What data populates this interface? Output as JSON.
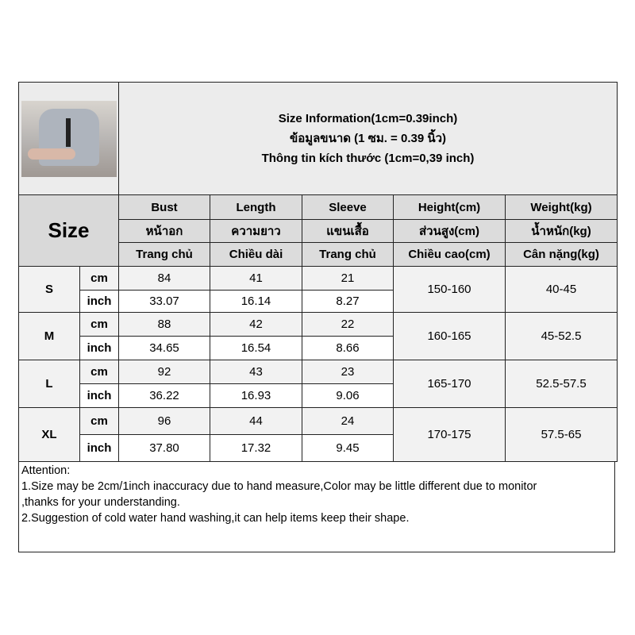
{
  "title_lines": [
    "Size Information(1cm=0.39inch)",
    "ข้อมูลขนาด (1 ซม. = 0.39 นิ้ว)",
    "Thông tin kích thước (1cm=0,39 inch)"
  ],
  "size_label": "Size",
  "headers": [
    [
      "Bust",
      "Length",
      "Sleeve",
      "Height(cm)",
      "Weight(kg)"
    ],
    [
      "หน้าอก",
      "ความยาว",
      "แขนเสื้อ",
      "ส่วนสูง(cm)",
      "น้ำหนัก(kg)"
    ],
    [
      "Trang chủ",
      "Chiều dài",
      "Trang chủ",
      "Chiều cao(cm)",
      "Cân nặng(kg)"
    ]
  ],
  "rows": [
    {
      "size": "S",
      "cm_label": "cm",
      "inch_label": "inch",
      "cm": [
        "84",
        "41",
        "21"
      ],
      "inch": [
        "33.07",
        "16.14",
        "8.27"
      ],
      "height": "150-160",
      "weight": "40-45"
    },
    {
      "size": "M",
      "cm_label": "cm",
      "inch_label": "inch",
      "cm": [
        "88",
        "42",
        "22"
      ],
      "inch": [
        "34.65",
        "16.54",
        "8.66"
      ],
      "height": "160-165",
      "weight": "45-52.5"
    },
    {
      "size": "L",
      "cm_label": "cm",
      "inch_label": "inch",
      "cm": [
        "92",
        "43",
        "23"
      ],
      "inch": [
        "36.22",
        "16.93",
        "9.06"
      ],
      "height": "165-170",
      "weight": "52.5-57.5"
    },
    {
      "size": "XL",
      "cm_label": "cm",
      "inch_label": "inch",
      "cm": [
        "96",
        "44",
        "24"
      ],
      "inch": [
        "37.80",
        "17.32",
        "9.45"
      ],
      "height": "170-175",
      "weight": "57.5-65"
    }
  ],
  "attention": {
    "heading": "Attention:",
    "lines": [
      "1.Size may be 2cm/1inch inaccuracy due to hand measure,Color may be little different due to monitor",
      ",thanks for your understanding.",
      "2.Suggestion of cold water hand washing,it can help items keep their shape."
    ]
  }
}
